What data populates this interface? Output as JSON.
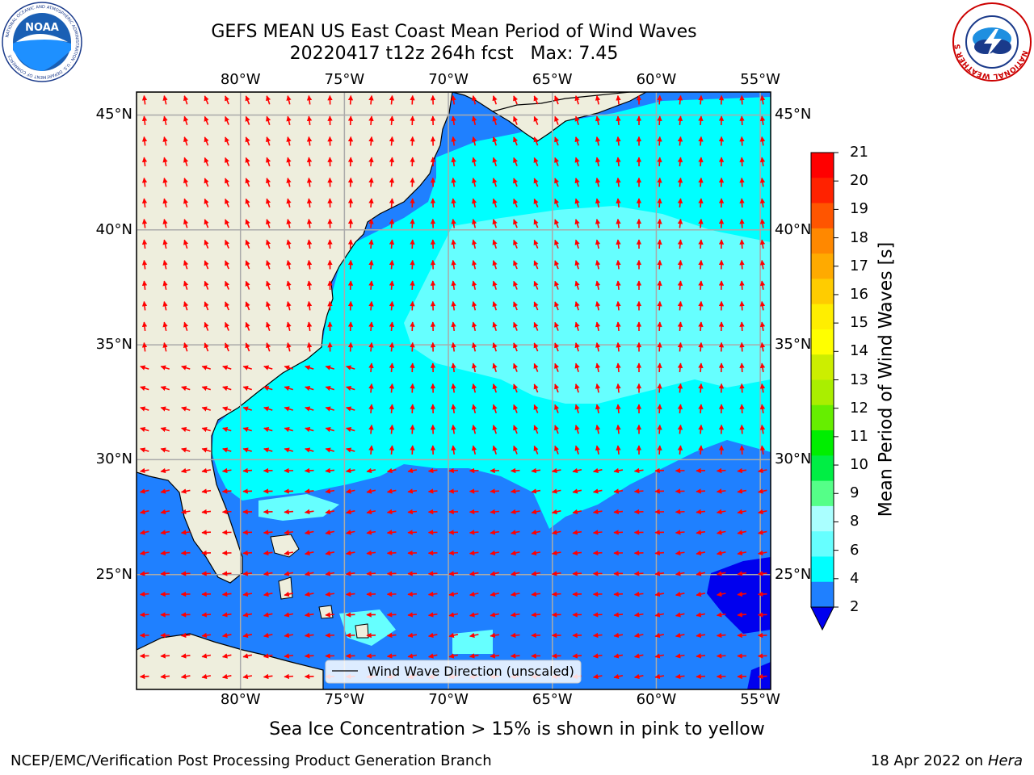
{
  "header": {
    "title_line1": "GEFS MEAN US East Coast Mean Period of Wind Waves",
    "title_line2": "20220417 t12z 264h fcst   Max: 7.45"
  },
  "logos": {
    "left": {
      "icon": "noaa-logo-icon",
      "text": "NOAA",
      "ring_text": "NATIONAL OCEANIC AND ATMOSPHERIC ADMINISTRATION · U.S. DEPARTMENT OF COMMERCE"
    },
    "right": {
      "icon": "nws-logo-icon",
      "ring_text": "NATIONAL WEATHER SERVICE"
    }
  },
  "map": {
    "longitude_labels": [
      "80°W",
      "75°W",
      "70°W",
      "65°W",
      "60°W",
      "55°W"
    ],
    "latitude_labels": [
      "45°N",
      "40°N",
      "35°N",
      "30°N",
      "25°N"
    ],
    "lon_range": [
      -85,
      -54.5
    ],
    "lat_range": [
      20,
      46
    ],
    "legend_label": "Wind Wave Direction (unscaled)",
    "colors": {
      "land": "#eeeedd",
      "ocean_2_4": "#1f80ff",
      "ocean_4_6": "#00ffff",
      "ocean_6_8": "#66ffff",
      "ocean_below_2": "#0000ee",
      "arrow": "#ff0000"
    }
  },
  "colorbar": {
    "label": "Mean Period of Wind Waves [s]",
    "ticks": [
      "21",
      "20",
      "19",
      "18",
      "17",
      "16",
      "15",
      "14",
      "13",
      "12",
      "11",
      "10",
      "9",
      "8",
      "6",
      "4",
      "2"
    ],
    "colors_top_to_bottom": [
      "#ff0000",
      "#ff2200",
      "#ff5500",
      "#ff8800",
      "#ffaa00",
      "#ffcc00",
      "#ffee00",
      "#ffff00",
      "#ccee00",
      "#aaee00",
      "#66ee00",
      "#00ee00",
      "#00ee44",
      "#55ff88",
      "#aaffff",
      "#66ffff",
      "#00ffff",
      "#1f80ff"
    ],
    "under_color": "#0000ee"
  },
  "caption": "Sea Ice Concentration > 15% is shown in pink to yellow",
  "footer": {
    "left": "NCEP/EMC/Verification Post Processing Product Generation Branch",
    "right_date": "18 Apr 2022 on",
    "right_host": "Hera"
  }
}
